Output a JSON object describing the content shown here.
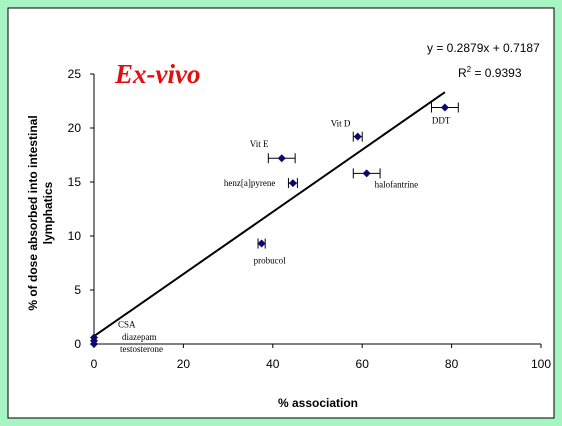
{
  "colors": {
    "frame_bg": "#a8f5c4",
    "plot_bg": "#ffffff",
    "marker": "#0a0a6e",
    "title": "#e01010",
    "line": "#000000"
  },
  "chart_data": {
    "type": "scatter",
    "title": "Ex-vivo",
    "xlabel": "% association",
    "ylabel_lines": [
      "% of dose absorbed into intestinal",
      "lymphatics"
    ],
    "xlim": [
      0,
      100
    ],
    "ylim": [
      0,
      25
    ],
    "xticks": [
      "0",
      "20",
      "40",
      "60",
      "80",
      "100"
    ],
    "yticks": [
      "0",
      "5",
      "10",
      "15",
      "20",
      "25"
    ],
    "grid": false,
    "series": [
      {
        "points": [
          {
            "label": "CSA",
            "x": 0,
            "y": 0.6,
            "xerr": 0
          },
          {
            "label": "diazepam",
            "x": 0,
            "y": 0.3,
            "xerr": 0
          },
          {
            "label": "testosterone",
            "x": 0,
            "y": 0.0,
            "xerr": 0
          },
          {
            "label": "probucol",
            "x": 37.5,
            "y": 9.3,
            "xerr": 0.8
          },
          {
            "label": "henz[a]pyrene",
            "x": 44.5,
            "y": 14.9,
            "xerr": 1.0
          },
          {
            "label": "Vit E",
            "x": 42,
            "y": 17.2,
            "xerr": 3.0
          },
          {
            "label": "Vit D",
            "x": 59,
            "y": 19.2,
            "xerr": 1.0
          },
          {
            "label": "halofantrine",
            "x": 61,
            "y": 15.8,
            "xerr": 3.0
          },
          {
            "label": "DDT",
            "x": 78.5,
            "y": 21.9,
            "xerr": 3.0
          }
        ]
      }
    ],
    "trendline": {
      "slope": 0.2879,
      "intercept": 0.7187,
      "x_range": [
        0,
        78.5
      ],
      "equation": "y = 0.2879x + 0.7187",
      "r2_prefix": "R",
      "r2_sup": "2",
      "r2_value": " = 0.9393"
    }
  }
}
